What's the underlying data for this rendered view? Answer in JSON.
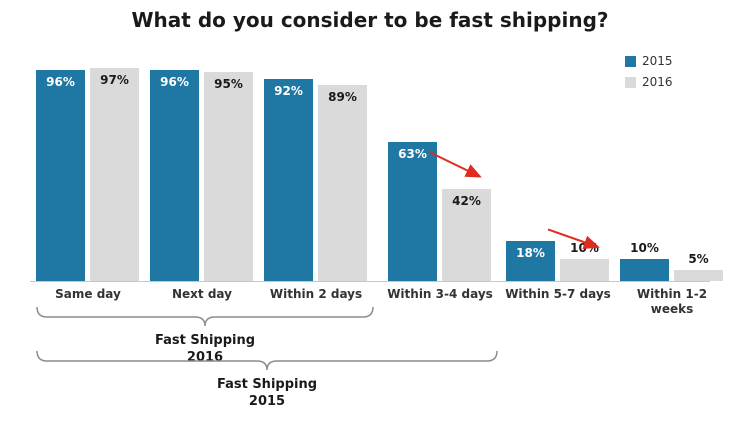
{
  "chart_data": {
    "type": "bar",
    "title": "What do you consider to be fast shipping?",
    "categories": [
      "Same day",
      "Next day",
      "Within 2 days",
      "Within 3-4 days",
      "Within 5-7 days",
      "Within 1-2\nweeks"
    ],
    "series": [
      {
        "name": "2015",
        "color": "#1f78a4",
        "label_color": "#ffffff",
        "values": [
          96,
          96,
          92,
          63,
          18,
          10
        ]
      },
      {
        "name": "2016",
        "color": "#dadada",
        "label_color": "#1a1a1a",
        "values": [
          97,
          95,
          89,
          42,
          10,
          5
        ]
      }
    ],
    "value_suffix": "%",
    "ylim": [
      0,
      100
    ],
    "grid": false,
    "legend_position": "top-right",
    "annotations": {
      "decline_arrows": [
        {
          "category_index": 3,
          "from_series": "2015",
          "to_series": "2016"
        },
        {
          "category_index": 4,
          "from_series": "2015",
          "to_series": "2016"
        }
      ],
      "braces": [
        {
          "label": "Fast Shipping\n2016",
          "from_category": 0,
          "to_category": 2
        },
        {
          "label": "Fast Shipping\n2015",
          "from_category": 0,
          "to_category": 3
        }
      ]
    }
  },
  "colors": {
    "series_2015": "#1f78a4",
    "series_2016": "#dadada",
    "arrow": "#e02b20",
    "axis": "#c8c8c8",
    "brace": "#8c8c8c",
    "title_text": "#1a1a1a",
    "category_text": "#333333"
  }
}
